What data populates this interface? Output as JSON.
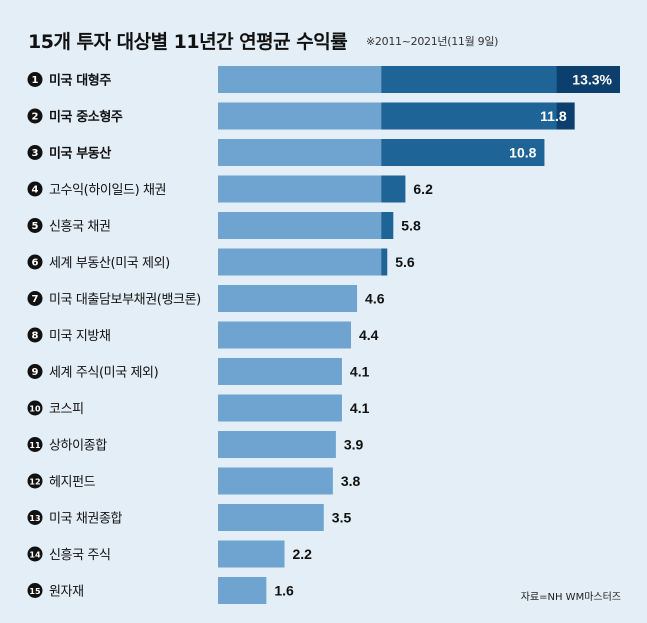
{
  "title": "15개 투자 대상별 11년간 연평균 수익률",
  "subtitle": "※2011~2021년(11월 9일)",
  "source": "자료=NH WM마스터즈",
  "colors": {
    "background": "#e3eef7",
    "bar_light": "#6ea4cf",
    "bar_mid": "#1f6497",
    "bar_dark": "#0d3f6e",
    "badge": "#111111"
  },
  "chart_data": {
    "type": "bar",
    "orientation": "horizontal",
    "title": "15개 투자 대상별 11년간 연평균 수익률",
    "subtitle": "※2011~2021년(11월 9일)",
    "xlim": [
      0,
      13.3
    ],
    "grid": false,
    "categories": [
      "미국 대형주",
      "미국 중소형주",
      "미국 부동산",
      "고수익(하이일드) 채권",
      "신흥국 채권",
      "세계 부동산(미국 제외)",
      "미국 대출담보부채권(뱅크론)",
      "미국 지방채",
      "세계 주식(미국 제외)",
      "코스피",
      "상하이종합",
      "헤지펀드",
      "미국 채권종합",
      "신흥국 주식",
      "원자재"
    ],
    "ranks": [
      "1",
      "2",
      "3",
      "4",
      "5",
      "6",
      "7",
      "8",
      "9",
      "10",
      "11",
      "12",
      "13",
      "14",
      "15"
    ],
    "values": [
      13.3,
      11.8,
      10.8,
      6.2,
      5.8,
      5.6,
      4.6,
      4.4,
      4.1,
      4.1,
      3.9,
      3.8,
      3.5,
      2.2,
      1.6
    ],
    "value_labels": [
      "13.3%",
      "11.8",
      "10.8",
      "6.2",
      "5.8",
      "5.6",
      "4.6",
      "4.4",
      "4.1",
      "4.1",
      "3.9",
      "3.8",
      "3.5",
      "2.2",
      "1.6"
    ],
    "highlight_top": 3
  }
}
